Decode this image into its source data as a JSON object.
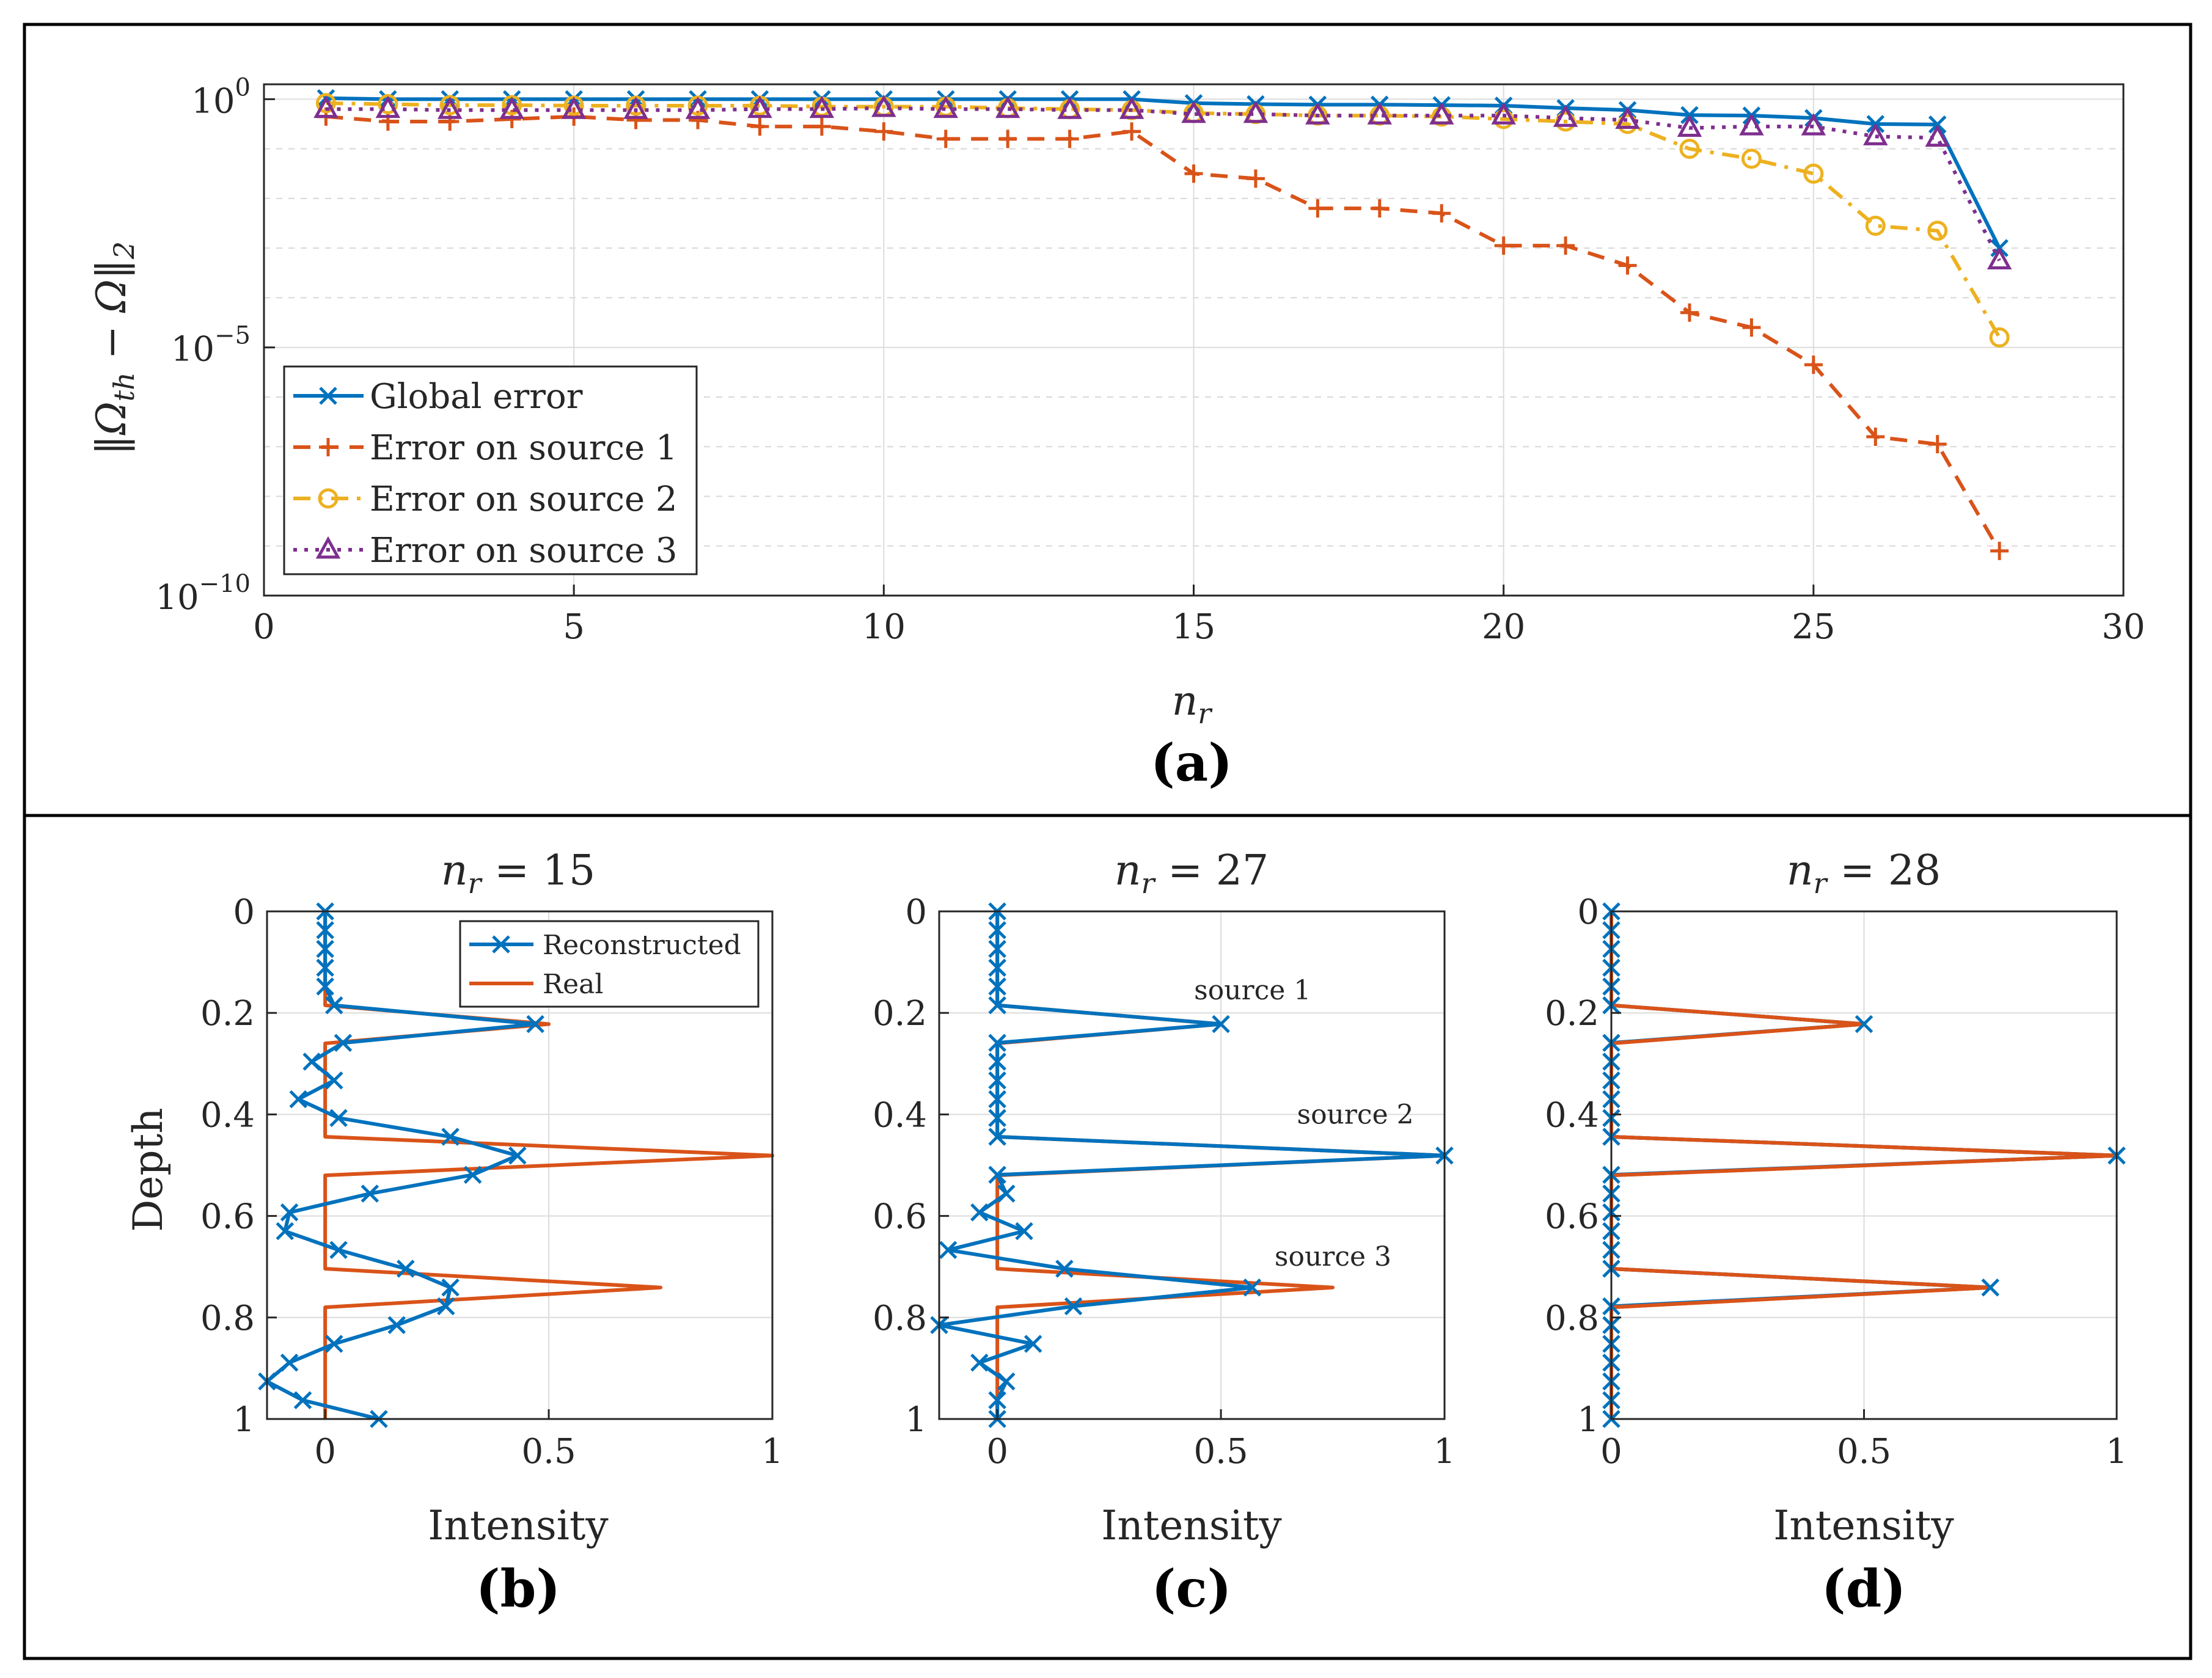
{
  "colors": {
    "global": "#0072BD",
    "source1": "#D95319",
    "source2": "#EDB120",
    "source3": "#7E2F8E",
    "reconstructed": "#0072BD",
    "real": "#D95319"
  },
  "chart_data": [
    {
      "id": "a",
      "type": "line",
      "panel_label": "(a)",
      "xlabel": "n_r",
      "ylabel": "‖Ω_th − Ω‖₂",
      "yscale": "log",
      "xlim": [
        0,
        30
      ],
      "ylim_exp": [
        -10,
        0.3
      ],
      "x_ticks": [
        "0",
        "5",
        "10",
        "15",
        "20",
        "25",
        "30"
      ],
      "y_ticks": [
        {
          "base": "10",
          "exp": "0"
        },
        {
          "base": "10",
          "exp": "−5"
        },
        {
          "base": "10",
          "exp": "−10"
        }
      ],
      "x": [
        1,
        2,
        3,
        4,
        5,
        6,
        7,
        8,
        9,
        10,
        11,
        12,
        13,
        14,
        15,
        16,
        17,
        18,
        19,
        20,
        21,
        22,
        23,
        24,
        25,
        26,
        27,
        28
      ],
      "series": [
        {
          "name": "Global error",
          "key": "global",
          "marker": "x",
          "dash": "solid",
          "log10_values": [
            0.02,
            0.0,
            0.0,
            0.0,
            0.0,
            0.0,
            0.0,
            0.0,
            0.0,
            0.0,
            0.0,
            0.0,
            0.0,
            0.0,
            -0.08,
            -0.1,
            -0.11,
            -0.11,
            -0.12,
            -0.13,
            -0.18,
            -0.22,
            -0.32,
            -0.33,
            -0.38,
            -0.5,
            -0.51,
            -3.0
          ]
        },
        {
          "name": "Error on source 1",
          "key": "source1",
          "marker": "+",
          "dash": "dash",
          "log10_values": [
            -0.35,
            -0.45,
            -0.45,
            -0.4,
            -0.35,
            -0.42,
            -0.42,
            -0.55,
            -0.55,
            -0.65,
            -0.8,
            -0.8,
            -0.8,
            -0.65,
            -1.5,
            -1.6,
            -2.2,
            -2.2,
            -2.3,
            -2.95,
            -2.95,
            -3.35,
            -4.3,
            -4.6,
            -5.35,
            -6.8,
            -6.95,
            -9.1
          ]
        },
        {
          "name": "Error on source 2",
          "key": "source2",
          "marker": "o",
          "dash": "dashdot",
          "log10_values": [
            -0.08,
            -0.1,
            -0.12,
            -0.12,
            -0.13,
            -0.13,
            -0.13,
            -0.13,
            -0.15,
            -0.15,
            -0.15,
            -0.18,
            -0.2,
            -0.22,
            -0.28,
            -0.3,
            -0.33,
            -0.33,
            -0.35,
            -0.4,
            -0.45,
            -0.5,
            -1.0,
            -1.2,
            -1.5,
            -2.55,
            -2.65,
            -4.8
          ]
        },
        {
          "name": "Error on source 3",
          "key": "source3",
          "marker": "^",
          "dash": "dot",
          "log10_values": [
            -0.2,
            -0.2,
            -0.22,
            -0.22,
            -0.22,
            -0.22,
            -0.22,
            -0.2,
            -0.2,
            -0.18,
            -0.2,
            -0.2,
            -0.22,
            -0.22,
            -0.3,
            -0.3,
            -0.33,
            -0.33,
            -0.33,
            -0.33,
            -0.38,
            -0.42,
            -0.58,
            -0.55,
            -0.55,
            -0.75,
            -0.78,
            -3.25
          ]
        }
      ]
    },
    {
      "id": "b",
      "type": "line",
      "title_base": "n_r = 15",
      "panel_label": "(b)",
      "xlabel": "Intensity",
      "ylabel": "Depth",
      "xlim": [
        -0.13,
        1
      ],
      "ylim": [
        0,
        1
      ],
      "y_reversed": true,
      "x_ticks": [
        "0",
        "0.5",
        "1"
      ],
      "y_ticks": [
        "0",
        "0.2",
        "0.4",
        "0.6",
        "0.8",
        "1"
      ],
      "legend": [
        "Reconstructed",
        "Real"
      ],
      "depth": [
        0,
        0.037,
        0.074,
        0.111,
        0.148,
        0.185,
        0.222,
        0.259,
        0.296,
        0.333,
        0.37,
        0.407,
        0.444,
        0.481,
        0.519,
        0.556,
        0.593,
        0.63,
        0.667,
        0.704,
        0.741,
        0.778,
        0.815,
        0.852,
        0.889,
        0.926,
        0.963,
        1.0
      ],
      "reconstructed": [
        0,
        0,
        0,
        0,
        0,
        0.02,
        0.47,
        0.04,
        -0.03,
        0.02,
        -0.06,
        0.03,
        0.28,
        0.43,
        0.33,
        0.1,
        -0.08,
        -0.09,
        0.03,
        0.18,
        0.28,
        0.27,
        0.16,
        0.02,
        -0.08,
        -0.13,
        -0.05,
        0.12
      ],
      "real_depth": [
        0,
        0.185,
        0.222,
        0.26,
        0.26,
        0.444,
        0.481,
        0.52,
        0.52,
        0.704,
        0.741,
        0.78,
        0.78,
        1.0
      ],
      "real": [
        0,
        0,
        0.5,
        0,
        0,
        0,
        1.0,
        0,
        0,
        0,
        0.75,
        0,
        0,
        0
      ]
    },
    {
      "id": "c",
      "type": "line",
      "title_base": "n_r = 27",
      "panel_label": "(c)",
      "xlabel": "Intensity",
      "xlim": [
        -0.13,
        1
      ],
      "ylim": [
        0,
        1
      ],
      "y_reversed": true,
      "x_ticks": [
        "0",
        "0.5",
        "1"
      ],
      "y_ticks": [
        "0",
        "0.2",
        "0.4",
        "0.6",
        "0.8",
        "1"
      ],
      "annotations": [
        {
          "text": "source 1",
          "x": 0.44,
          "y": 0.155
        },
        {
          "text": "source 2",
          "x": 0.67,
          "y": 0.4
        },
        {
          "text": "source 3",
          "x": 0.62,
          "y": 0.68
        }
      ],
      "depth": [
        0,
        0.037,
        0.074,
        0.111,
        0.148,
        0.185,
        0.222,
        0.259,
        0.296,
        0.333,
        0.37,
        0.407,
        0.444,
        0.481,
        0.519,
        0.556,
        0.593,
        0.63,
        0.667,
        0.704,
        0.741,
        0.778,
        0.815,
        0.852,
        0.889,
        0.926,
        0.963,
        1.0
      ],
      "reconstructed": [
        0,
        0,
        0,
        0,
        0,
        0,
        0.5,
        0,
        0,
        0,
        0,
        0,
        0,
        1.0,
        0,
        0.02,
        -0.04,
        0.06,
        -0.11,
        0.15,
        0.57,
        0.17,
        -0.13,
        0.08,
        -0.04,
        0.02,
        0,
        0
      ],
      "real_depth": [
        0,
        0.185,
        0.222,
        0.26,
        0.26,
        0.444,
        0.481,
        0.52,
        0.52,
        0.704,
        0.741,
        0.78,
        0.78,
        1.0
      ],
      "real": [
        0,
        0,
        0.5,
        0,
        0,
        0,
        1.0,
        0,
        0,
        0,
        0.75,
        0,
        0,
        0
      ]
    },
    {
      "id": "d",
      "type": "line",
      "title_base": "n_r = 28",
      "panel_label": "(d)",
      "xlabel": "Intensity",
      "xlim": [
        0,
        1
      ],
      "ylim": [
        0,
        1
      ],
      "y_reversed": true,
      "x_ticks": [
        "0",
        "0.5",
        "1"
      ],
      "y_ticks": [
        "0",
        "0.2",
        "0.4",
        "0.6",
        "0.8",
        "1"
      ],
      "depth": [
        0,
        0.037,
        0.074,
        0.111,
        0.148,
        0.185,
        0.222,
        0.259,
        0.296,
        0.333,
        0.37,
        0.407,
        0.444,
        0.481,
        0.519,
        0.556,
        0.593,
        0.63,
        0.667,
        0.704,
        0.741,
        0.778,
        0.815,
        0.852,
        0.889,
        0.926,
        0.963,
        1.0
      ],
      "reconstructed": [
        0,
        0,
        0,
        0,
        0,
        0,
        0.5,
        0,
        0,
        0,
        0,
        0,
        0,
        1.0,
        0,
        0,
        0,
        0,
        0,
        0,
        0.75,
        0,
        0,
        0,
        0,
        0,
        0,
        0
      ],
      "real_depth": [
        0,
        0.185,
        0.222,
        0.26,
        0.26,
        0.444,
        0.481,
        0.52,
        0.52,
        0.704,
        0.741,
        0.78,
        0.78,
        1.0
      ],
      "real": [
        0,
        0,
        0.5,
        0,
        0,
        0,
        1.0,
        0,
        0,
        0,
        0.75,
        0,
        0,
        0
      ]
    }
  ]
}
